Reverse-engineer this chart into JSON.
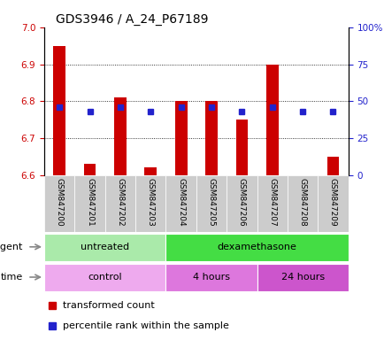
{
  "title": "GDS3946 / A_24_P67189",
  "samples": [
    "GSM847200",
    "GSM847201",
    "GSM847202",
    "GSM847203",
    "GSM847204",
    "GSM847205",
    "GSM847206",
    "GSM847207",
    "GSM847208",
    "GSM847209"
  ],
  "transformed_count": [
    6.95,
    6.63,
    6.81,
    6.62,
    6.8,
    6.8,
    6.75,
    6.9,
    6.6,
    6.65
  ],
  "percentile_rank": [
    46,
    43,
    46,
    43,
    46,
    46,
    43,
    46,
    43,
    43
  ],
  "bar_bottom": 6.6,
  "ylim": [
    6.6,
    7.0
  ],
  "yticks_left": [
    6.6,
    6.7,
    6.8,
    6.9,
    7.0
  ],
  "yticks_right": [
    0,
    25,
    50,
    75,
    100
  ],
  "ylim_right": [
    0,
    100
  ],
  "bar_color": "#cc0000",
  "dot_color": "#2222cc",
  "agent_groups": [
    {
      "label": "untreated",
      "start": 0,
      "end": 4,
      "color": "#aaeaaa"
    },
    {
      "label": "dexamethasone",
      "start": 4,
      "end": 10,
      "color": "#44dd44"
    }
  ],
  "time_groups": [
    {
      "label": "control",
      "start": 0,
      "end": 4,
      "color": "#eeaaee"
    },
    {
      "label": "4 hours",
      "start": 4,
      "end": 7,
      "color": "#dd77dd"
    },
    {
      "label": "24 hours",
      "start": 7,
      "end": 10,
      "color": "#cc55cc"
    }
  ],
  "legend_items": [
    {
      "label": "transformed count",
      "color": "#cc0000"
    },
    {
      "label": "percentile rank within the sample",
      "color": "#2222cc"
    }
  ],
  "ytick_label_right": [
    "0",
    "25",
    "50",
    "75",
    "100%"
  ],
  "bar_width": 0.4,
  "dot_size": 5,
  "title_fontsize": 10,
  "tick_fontsize": 7.5,
  "label_fontsize": 8,
  "xlabel_gray": "#cccccc"
}
